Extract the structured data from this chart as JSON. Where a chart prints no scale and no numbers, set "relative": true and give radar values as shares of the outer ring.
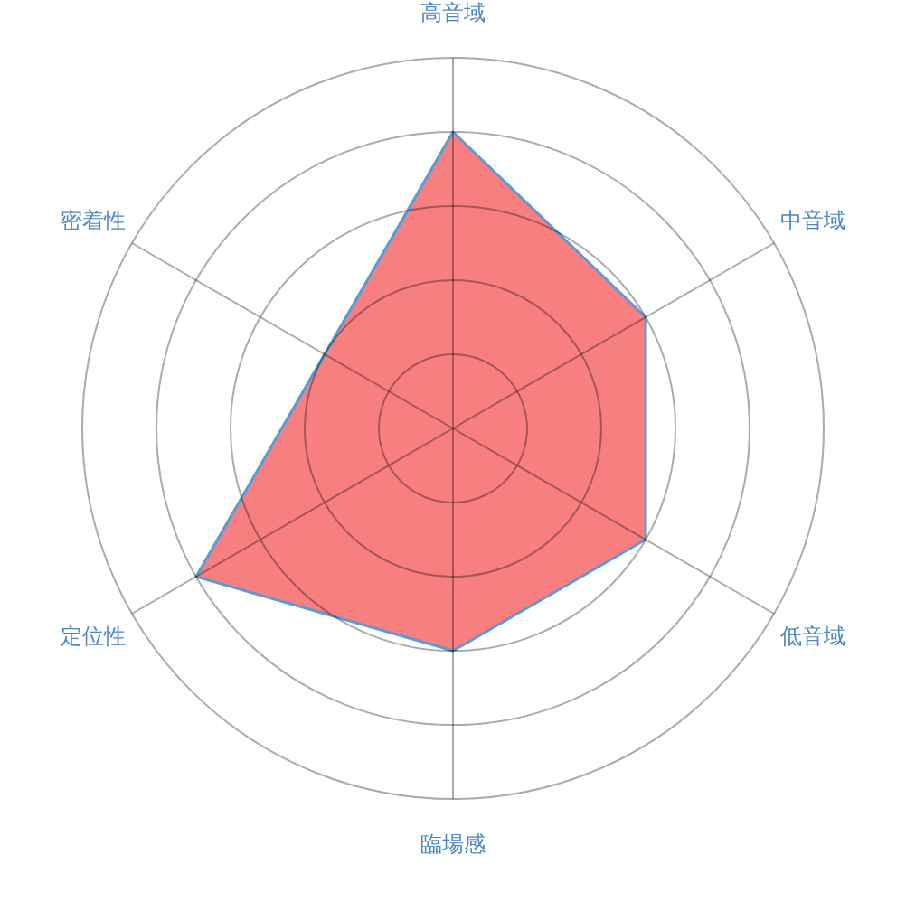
{
  "chart_data": {
    "type": "radar",
    "categories": [
      "高音域",
      "中音域",
      "低音域",
      "臨場感",
      "定位性",
      "密着性"
    ],
    "relative": true,
    "series": [
      {
        "color": "#f87f7f",
        "values": [
          0.8,
          0.6,
          0.6,
          0.6,
          0.8,
          0.4
        ]
      }
    ],
    "grid": true
  }
}
